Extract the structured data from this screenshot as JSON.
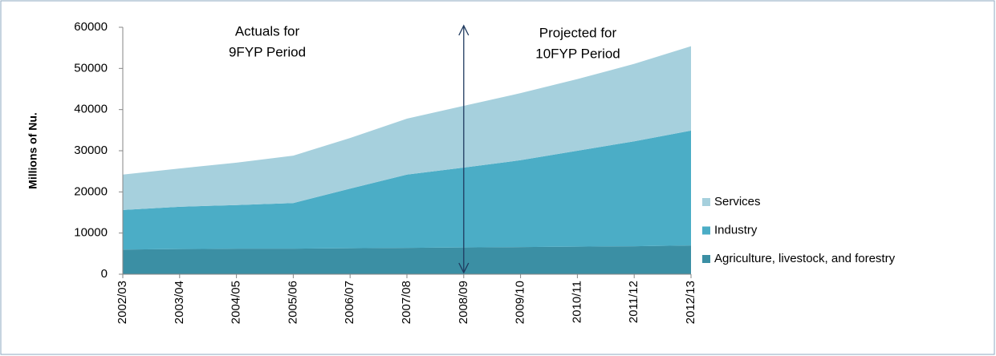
{
  "chart_data": {
    "type": "stacked_area",
    "y_axis_label": "Millions of Nu.",
    "categories": [
      "2002/03",
      "2003/04",
      "2004/05",
      "2005/06",
      "2006/07",
      "2007/08",
      "2008/09",
      "2009/10",
      "2010/11",
      "2011/12",
      "2012/13"
    ],
    "series": [
      {
        "name": "Agriculture, livestock, and forestry",
        "color": "#3b8fa4",
        "values": [
          6000,
          6100,
          6200,
          6200,
          6300,
          6400,
          6500,
          6600,
          6700,
          6800,
          7000
        ]
      },
      {
        "name": "Industry",
        "color": "#4badc6",
        "values": [
          9600,
          10300,
          10600,
          11100,
          14500,
          17800,
          19400,
          21100,
          23300,
          25500,
          27900
        ]
      },
      {
        "name": "Services",
        "color": "#a6d0dd",
        "values": [
          8600,
          9300,
          10300,
          11500,
          12300,
          13600,
          15000,
          16300,
          17400,
          18800,
          20500
        ]
      }
    ],
    "ylim": [
      0,
      60000
    ],
    "yticks": [
      0,
      10000,
      20000,
      30000,
      40000,
      50000,
      60000
    ],
    "annotations": [
      {
        "lines": [
          "Actuals for",
          "9FYP Period"
        ]
      },
      {
        "lines": [
          "Projected for",
          "10FYP Period"
        ]
      }
    ],
    "legend_position": "right"
  }
}
